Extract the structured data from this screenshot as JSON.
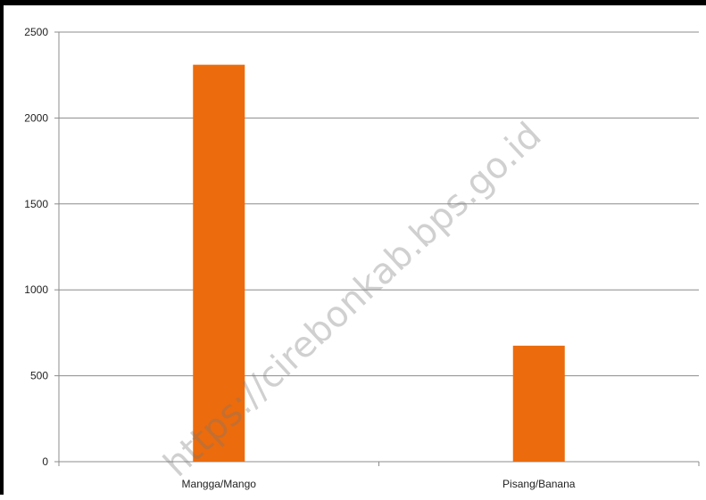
{
  "chart_data": {
    "type": "bar",
    "categories": [
      "Mangga/Mango",
      "Pisang/Banana"
    ],
    "values": [
      2310,
      675
    ],
    "ylim": [
      0,
      2500
    ],
    "yticks": [
      0,
      500,
      1000,
      1500,
      2000,
      2500
    ],
    "ytick_labels": [
      "0",
      "500",
      "1000",
      "1500",
      "2000",
      "2500"
    ],
    "grid": true,
    "legend": "none",
    "bar_color": "#ec6b0c",
    "watermark": "https://cirebonkab.bps.go.id"
  }
}
